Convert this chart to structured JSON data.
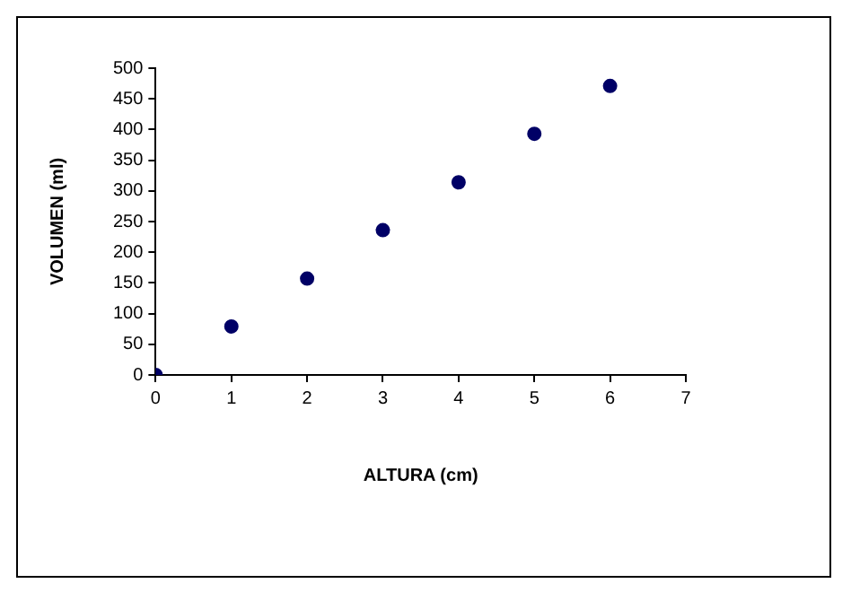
{
  "chart_data": {
    "type": "scatter",
    "xlabel": "ALTURA (cm)",
    "ylabel": "VOLUMEN (ml)",
    "x": [
      0,
      1,
      2,
      3,
      4,
      5,
      6
    ],
    "series": [
      {
        "color": "#000066",
        "values": [
          0,
          79,
          157,
          236,
          314,
          393,
          471
        ]
      }
    ],
    "xlim": [
      0,
      7
    ],
    "xticks": [
      0,
      1,
      2,
      3,
      4,
      5,
      6,
      7
    ],
    "ylim": [
      0,
      500
    ],
    "yticks": [
      0,
      50,
      100,
      150,
      200,
      250,
      300,
      350,
      400,
      450,
      500
    ],
    "grid": false,
    "legend": false,
    "marker": "circle"
  }
}
